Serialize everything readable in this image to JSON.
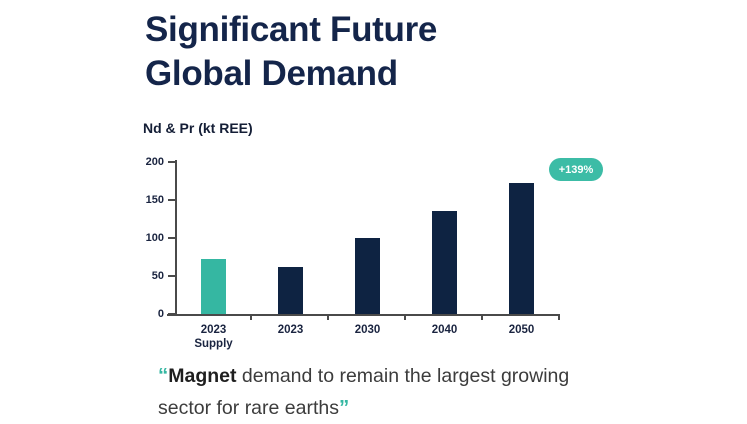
{
  "title": {
    "line1": "Significant Future",
    "line2": "Global Demand"
  },
  "chart_data": {
    "type": "bar",
    "title": "Nd & Pr (kt REE)",
    "categories": [
      "2023 Supply",
      "2023",
      "2030",
      "2040",
      "2050"
    ],
    "values": [
      72,
      62,
      100,
      135,
      172
    ],
    "bar_colors": [
      "#35B7A2",
      "#0E2342",
      "#0E2342",
      "#0E2342",
      "#0E2342"
    ],
    "ylabel": "Nd & Pr (kt REE)",
    "xlabel": "",
    "ylim": [
      0,
      200
    ],
    "yticks": [
      0,
      50,
      100,
      150,
      200
    ],
    "grid": false,
    "legend_position": "none",
    "annotation": {
      "label": "+139%",
      "color": "#3CBCA6",
      "applies_to": "2050 vs 2023 Supply"
    }
  },
  "quote": {
    "open_mark": "“",
    "bold_text": "Magnet",
    "line1_rest": " demand to remain the largest growing",
    "line2_text": "sector for rare earths",
    "close_mark": "”"
  },
  "colors": {
    "navy": "#0E2342",
    "title_navy": "#14254A",
    "teal": "#35B7A2",
    "badge_teal": "#3CBCA6",
    "axis_gray": "#4a4a4a",
    "quote_gray": "#3C3C3C"
  }
}
